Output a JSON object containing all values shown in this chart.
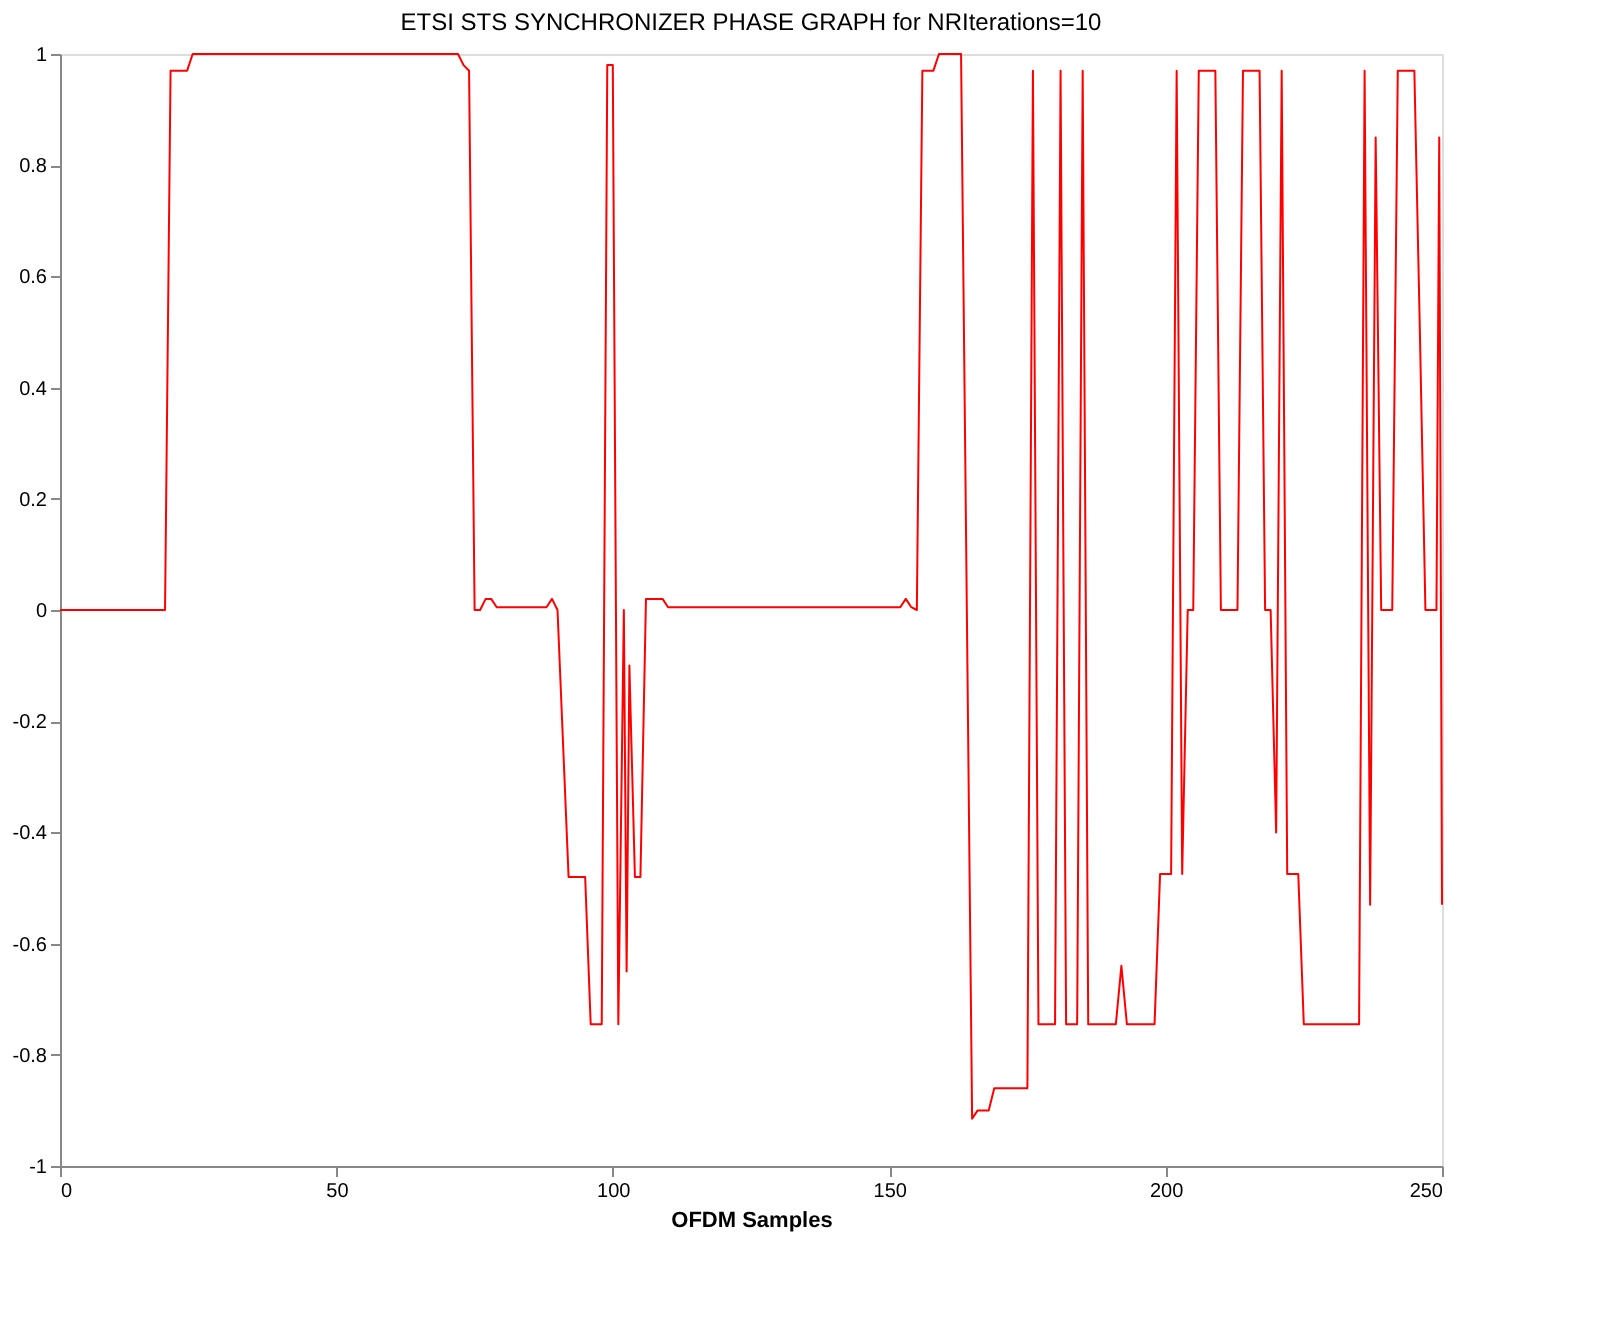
{
  "chart_data": {
    "type": "line",
    "title": "ETSI STS SYNCHRONIZER PHASE GRAPH for NRIterations=10",
    "xlabel": "OFDM Samples",
    "xlim": [
      0,
      250
    ],
    "xticks": [
      0,
      50,
      100,
      150,
      200,
      250
    ],
    "ylim": [
      -1,
      1
    ],
    "yticks": [
      -1,
      -0.8,
      -0.6,
      -0.4,
      -0.2,
      0,
      0.2,
      0.4,
      0.6,
      0.8,
      1
    ],
    "grid": false,
    "legend": false,
    "marker": "none",
    "line_style": "solid",
    "x": [
      0,
      19,
      20,
      23,
      24,
      72,
      73,
      74,
      75,
      76,
      77,
      78,
      79,
      88,
      89,
      90,
      92,
      95,
      96,
      98,
      99,
      100,
      101,
      102,
      102.5,
      103,
      104,
      105,
      106,
      109,
      110,
      152,
      153,
      154,
      155,
      156,
      158,
      159,
      163,
      165,
      166,
      168,
      169,
      175,
      176,
      177,
      180,
      181,
      182,
      184,
      185,
      186,
      191,
      192,
      193,
      198,
      199,
      201,
      202,
      203,
      204,
      205,
      206,
      209,
      210,
      213,
      214,
      217,
      218,
      219,
      220,
      221,
      222,
      224,
      225,
      235,
      236,
      237,
      238,
      239,
      241,
      242,
      245,
      246,
      247,
      249,
      249.5,
      250
    ],
    "series": [
      {
        "color": "#ff0000",
        "values": [
          0,
          0,
          0.97,
          0.97,
          1,
          1,
          0.98,
          0.97,
          0,
          0,
          0.02,
          0.02,
          0.005,
          0.005,
          0.02,
          0,
          -0.48,
          -0.48,
          -0.745,
          -0.745,
          0.98,
          0.98,
          -0.745,
          0,
          -0.65,
          -0.1,
          -0.48,
          -0.48,
          0.02,
          0.02,
          0.005,
          0.005,
          0.02,
          0.005,
          0,
          0.97,
          0.97,
          1,
          1,
          -0.915,
          -0.9,
          -0.9,
          -0.86,
          -0.86,
          0.97,
          -0.745,
          -0.745,
          0.97,
          -0.745,
          -0.745,
          0.97,
          -0.745,
          -0.745,
          -0.64,
          -0.745,
          -0.745,
          -0.475,
          -0.475,
          0.97,
          -0.475,
          0,
          0,
          0.97,
          0.97,
          0,
          0,
          0.97,
          0.97,
          0,
          0,
          -0.4,
          0.97,
          -0.475,
          -0.475,
          -0.745,
          -0.745,
          0.97,
          -0.53,
          0.85,
          0,
          0,
          0.97,
          0.97,
          0.5,
          0,
          0,
          0.85,
          -0.53
        ]
      }
    ]
  }
}
